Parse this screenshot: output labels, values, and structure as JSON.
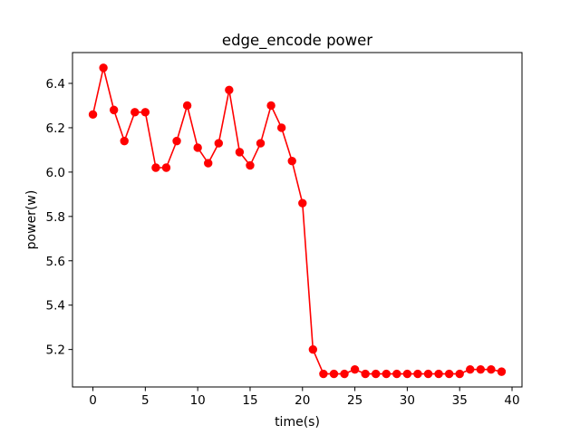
{
  "chart_data": {
    "type": "line",
    "title": "edge_encode power",
    "xlabel": "time(s)",
    "ylabel": "power(w)",
    "xlim": [
      -1.95,
      40.95
    ],
    "ylim": [
      5.031,
      6.539
    ],
    "x_ticks": [
      0,
      5,
      10,
      15,
      20,
      25,
      30,
      35,
      40
    ],
    "y_ticks": [
      5.2,
      5.4,
      5.6,
      5.8,
      6.0,
      6.2,
      6.4
    ],
    "x_tick_labels": [
      "0",
      "5",
      "10",
      "15",
      "20",
      "25",
      "30",
      "35",
      "40"
    ],
    "y_tick_labels": [
      "5.2",
      "5.4",
      "5.6",
      "5.8",
      "6.0",
      "6.2",
      "6.4"
    ],
    "grid": false,
    "legend": false,
    "series": [
      {
        "color": "#ff0000",
        "marker": "circle",
        "x": [
          0,
          1,
          2,
          3,
          4,
          5,
          6,
          7,
          8,
          9,
          10,
          11,
          12,
          13,
          14,
          15,
          16,
          17,
          18,
          19,
          20,
          21,
          22,
          23,
          24,
          25,
          26,
          27,
          28,
          29,
          30,
          31,
          32,
          33,
          34,
          35,
          36,
          37,
          38,
          39
        ],
        "y": [
          6.26,
          6.47,
          6.28,
          6.14,
          6.27,
          6.27,
          6.02,
          6.02,
          6.14,
          6.3,
          6.11,
          6.04,
          6.13,
          6.37,
          6.09,
          6.03,
          6.13,
          6.3,
          6.2,
          6.05,
          5.86,
          5.2,
          5.09,
          5.09,
          5.09,
          5.11,
          5.09,
          5.09,
          5.09,
          5.09,
          5.09,
          5.09,
          5.09,
          5.09,
          5.09,
          5.09,
          5.11,
          5.11,
          5.11,
          5.1
        ]
      }
    ]
  }
}
